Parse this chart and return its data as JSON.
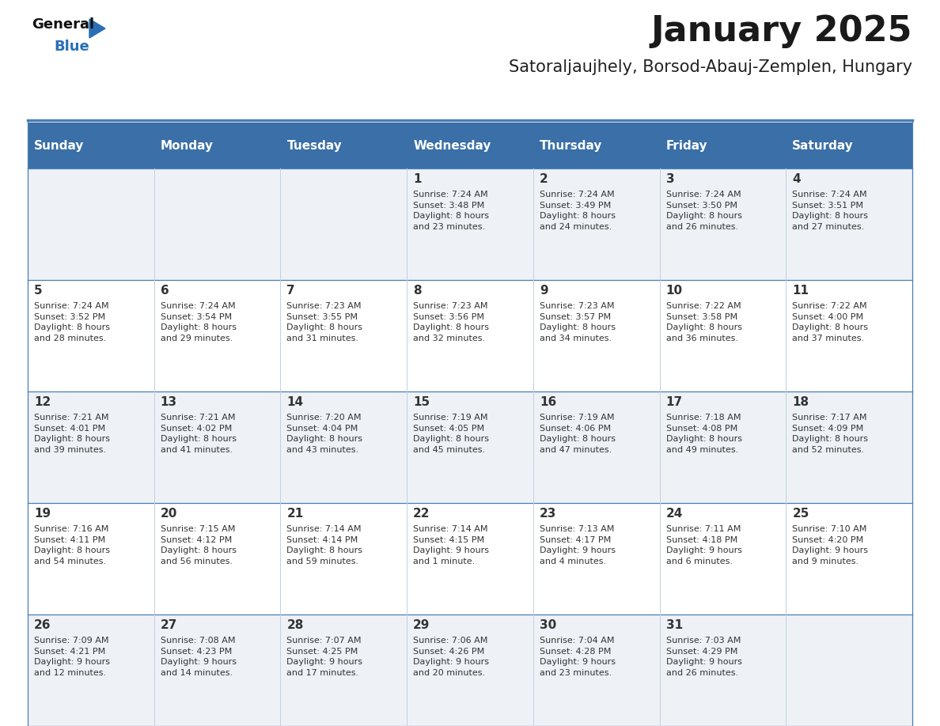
{
  "title": "January 2025",
  "subtitle": "Satoraljaujhely, Borsod-Abauj-Zemplen, Hungary",
  "days_of_week": [
    "Sunday",
    "Monday",
    "Tuesday",
    "Wednesday",
    "Thursday",
    "Friday",
    "Saturday"
  ],
  "header_bg": "#3a6fa8",
  "header_text": "#ffffff",
  "cell_bg_light": "#eef2f7",
  "cell_bg_white": "#ffffff",
  "border_color": "#4a7fb5",
  "separator_color": "#c0cfe0",
  "text_color": "#333333",
  "title_fontsize": 32,
  "subtitle_fontsize": 15,
  "header_fontsize": 11,
  "day_num_fontsize": 11,
  "cell_text_fontsize": 8,
  "fig_width": 11.88,
  "fig_height": 9.18,
  "calendar_data": [
    [
      {
        "day": "",
        "info": ""
      },
      {
        "day": "",
        "info": ""
      },
      {
        "day": "",
        "info": ""
      },
      {
        "day": "1",
        "info": "Sunrise: 7:24 AM\nSunset: 3:48 PM\nDaylight: 8 hours\nand 23 minutes."
      },
      {
        "day": "2",
        "info": "Sunrise: 7:24 AM\nSunset: 3:49 PM\nDaylight: 8 hours\nand 24 minutes."
      },
      {
        "day": "3",
        "info": "Sunrise: 7:24 AM\nSunset: 3:50 PM\nDaylight: 8 hours\nand 26 minutes."
      },
      {
        "day": "4",
        "info": "Sunrise: 7:24 AM\nSunset: 3:51 PM\nDaylight: 8 hours\nand 27 minutes."
      }
    ],
    [
      {
        "day": "5",
        "info": "Sunrise: 7:24 AM\nSunset: 3:52 PM\nDaylight: 8 hours\nand 28 minutes."
      },
      {
        "day": "6",
        "info": "Sunrise: 7:24 AM\nSunset: 3:54 PM\nDaylight: 8 hours\nand 29 minutes."
      },
      {
        "day": "7",
        "info": "Sunrise: 7:23 AM\nSunset: 3:55 PM\nDaylight: 8 hours\nand 31 minutes."
      },
      {
        "day": "8",
        "info": "Sunrise: 7:23 AM\nSunset: 3:56 PM\nDaylight: 8 hours\nand 32 minutes."
      },
      {
        "day": "9",
        "info": "Sunrise: 7:23 AM\nSunset: 3:57 PM\nDaylight: 8 hours\nand 34 minutes."
      },
      {
        "day": "10",
        "info": "Sunrise: 7:22 AM\nSunset: 3:58 PM\nDaylight: 8 hours\nand 36 minutes."
      },
      {
        "day": "11",
        "info": "Sunrise: 7:22 AM\nSunset: 4:00 PM\nDaylight: 8 hours\nand 37 minutes."
      }
    ],
    [
      {
        "day": "12",
        "info": "Sunrise: 7:21 AM\nSunset: 4:01 PM\nDaylight: 8 hours\nand 39 minutes."
      },
      {
        "day": "13",
        "info": "Sunrise: 7:21 AM\nSunset: 4:02 PM\nDaylight: 8 hours\nand 41 minutes."
      },
      {
        "day": "14",
        "info": "Sunrise: 7:20 AM\nSunset: 4:04 PM\nDaylight: 8 hours\nand 43 minutes."
      },
      {
        "day": "15",
        "info": "Sunrise: 7:19 AM\nSunset: 4:05 PM\nDaylight: 8 hours\nand 45 minutes."
      },
      {
        "day": "16",
        "info": "Sunrise: 7:19 AM\nSunset: 4:06 PM\nDaylight: 8 hours\nand 47 minutes."
      },
      {
        "day": "17",
        "info": "Sunrise: 7:18 AM\nSunset: 4:08 PM\nDaylight: 8 hours\nand 49 minutes."
      },
      {
        "day": "18",
        "info": "Sunrise: 7:17 AM\nSunset: 4:09 PM\nDaylight: 8 hours\nand 52 minutes."
      }
    ],
    [
      {
        "day": "19",
        "info": "Sunrise: 7:16 AM\nSunset: 4:11 PM\nDaylight: 8 hours\nand 54 minutes."
      },
      {
        "day": "20",
        "info": "Sunrise: 7:15 AM\nSunset: 4:12 PM\nDaylight: 8 hours\nand 56 minutes."
      },
      {
        "day": "21",
        "info": "Sunrise: 7:14 AM\nSunset: 4:14 PM\nDaylight: 8 hours\nand 59 minutes."
      },
      {
        "day": "22",
        "info": "Sunrise: 7:14 AM\nSunset: 4:15 PM\nDaylight: 9 hours\nand 1 minute."
      },
      {
        "day": "23",
        "info": "Sunrise: 7:13 AM\nSunset: 4:17 PM\nDaylight: 9 hours\nand 4 minutes."
      },
      {
        "day": "24",
        "info": "Sunrise: 7:11 AM\nSunset: 4:18 PM\nDaylight: 9 hours\nand 6 minutes."
      },
      {
        "day": "25",
        "info": "Sunrise: 7:10 AM\nSunset: 4:20 PM\nDaylight: 9 hours\nand 9 minutes."
      }
    ],
    [
      {
        "day": "26",
        "info": "Sunrise: 7:09 AM\nSunset: 4:21 PM\nDaylight: 9 hours\nand 12 minutes."
      },
      {
        "day": "27",
        "info": "Sunrise: 7:08 AM\nSunset: 4:23 PM\nDaylight: 9 hours\nand 14 minutes."
      },
      {
        "day": "28",
        "info": "Sunrise: 7:07 AM\nSunset: 4:25 PM\nDaylight: 9 hours\nand 17 minutes."
      },
      {
        "day": "29",
        "info": "Sunrise: 7:06 AM\nSunset: 4:26 PM\nDaylight: 9 hours\nand 20 minutes."
      },
      {
        "day": "30",
        "info": "Sunrise: 7:04 AM\nSunset: 4:28 PM\nDaylight: 9 hours\nand 23 minutes."
      },
      {
        "day": "31",
        "info": "Sunrise: 7:03 AM\nSunset: 4:29 PM\nDaylight: 9 hours\nand 26 minutes."
      },
      {
        "day": "",
        "info": ""
      }
    ]
  ]
}
